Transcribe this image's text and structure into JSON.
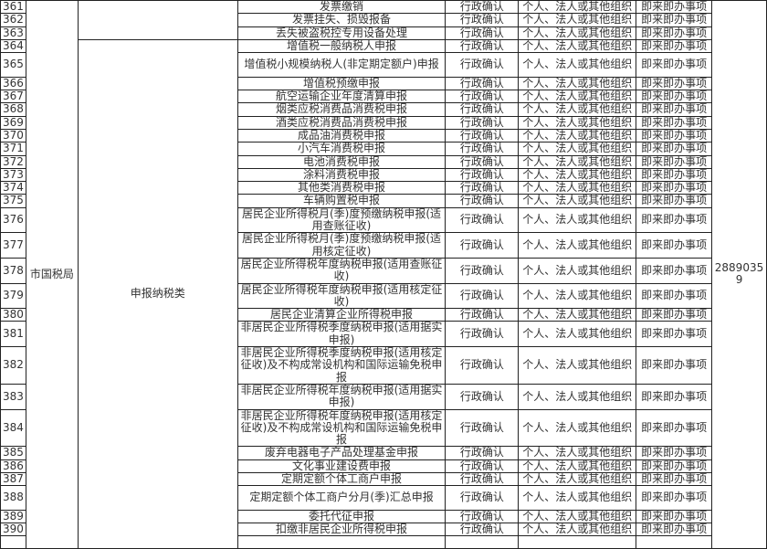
{
  "department": "市国税局",
  "phone": "28890359",
  "categories": [
    {
      "name": "",
      "first_index": 0,
      "count": 3
    },
    {
      "name": "申报纳税类",
      "first_index": 3,
      "count": 27
    }
  ],
  "rows": [
    {
      "no": "361",
      "item": "发票缴销",
      "type": "行政确认",
      "target": "个人、法人或其他组织",
      "timing": "即来即办事项",
      "lines": 1
    },
    {
      "no": "362",
      "item": "发票挂失、损毁报备",
      "type": "行政确认",
      "target": "个人、法人或其他组织",
      "timing": "即来即办事项",
      "lines": 1
    },
    {
      "no": "363",
      "item": "丢失被盗税控专用设备处理",
      "type": "行政确认",
      "target": "个人、法人或其他组织",
      "timing": "即来即办事项",
      "lines": 1
    },
    {
      "no": "364",
      "item": "增值税一般纳税人申报",
      "type": "行政确认",
      "target": "个人、法人或其他组织",
      "timing": "即来即办事项",
      "lines": 1
    },
    {
      "no": "365",
      "item": "增值税小规模纳税人(非定期定额户)申报",
      "type": "行政确认",
      "target": "个人、法人或其他组织",
      "timing": "即来即办事项",
      "lines": 2
    },
    {
      "no": "366",
      "item": "增值税预缴申报",
      "type": "行政确认",
      "target": "个人、法人或其他组织",
      "timing": "即来即办事项",
      "lines": 1
    },
    {
      "no": "367",
      "item": "航空运输企业年度清算申报",
      "type": "行政确认",
      "target": "个人、法人或其他组织",
      "timing": "即来即办事项",
      "lines": 1
    },
    {
      "no": "368",
      "item": "烟类应税消费品消费税申报",
      "type": "行政确认",
      "target": "个人、法人或其他组织",
      "timing": "即来即办事项",
      "lines": 1
    },
    {
      "no": "369",
      "item": "酒类应税消费品消费税申报",
      "type": "行政确认",
      "target": "个人、法人或其他组织",
      "timing": "即来即办事项",
      "lines": 1
    },
    {
      "no": "370",
      "item": "成品油消费税申报",
      "type": "行政确认",
      "target": "个人、法人或其他组织",
      "timing": "即来即办事项",
      "lines": 1
    },
    {
      "no": "371",
      "item": "小汽车消费税申报",
      "type": "行政确认",
      "target": "个人、法人或其他组织",
      "timing": "即来即办事项",
      "lines": 1
    },
    {
      "no": "372",
      "item": "电池消费税申报",
      "type": "行政确认",
      "target": "个人、法人或其他组织",
      "timing": "即来即办事项",
      "lines": 1
    },
    {
      "no": "373",
      "item": "涂料消费税申报",
      "type": "行政确认",
      "target": "个人、法人或其他组织",
      "timing": "即来即办事项",
      "lines": 1
    },
    {
      "no": "374",
      "item": "其他类消费税申报",
      "type": "行政确认",
      "target": "个人、法人或其他组织",
      "timing": "即来即办事项",
      "lines": 1
    },
    {
      "no": "375",
      "item": "车辆购置税申报",
      "type": "行政确认",
      "target": "个人、法人或其他组织",
      "timing": "即来即办事项",
      "lines": 1
    },
    {
      "no": "376",
      "item": "居民企业所得税月(季)度预缴纳税申报(适用查账征收)",
      "type": "行政确认",
      "target": "个人、法人或其他组织",
      "timing": "即来即办事项",
      "lines": 2
    },
    {
      "no": "377",
      "item": "居民企业所得税月(季)度预缴纳税申报(适用核定征收)",
      "type": "行政确认",
      "target": "个人、法人或其他组织",
      "timing": "即来即办事项",
      "lines": 2
    },
    {
      "no": "378",
      "item": "居民企业所得税年度纳税申报(适用查账征收)",
      "type": "行政确认",
      "target": "个人、法人或其他组织",
      "timing": "即来即办事项",
      "lines": 2
    },
    {
      "no": "379",
      "item": "居民企业所得税年度纳税申报(适用核定征收)",
      "type": "行政确认",
      "target": "个人、法人或其他组织",
      "timing": "即来即办事项",
      "lines": 2
    },
    {
      "no": "380",
      "item": "居民企业清算企业所得税申报",
      "type": "行政确认",
      "target": "个人、法人或其他组织",
      "timing": "即来即办事项",
      "lines": 1
    },
    {
      "no": "381",
      "item": "非居民企业所得税季度纳税申报(适用据实申报)",
      "type": "行政确认",
      "target": "个人、法人或其他组织",
      "timing": "即来即办事项",
      "lines": 2
    },
    {
      "no": "382",
      "item": "非居民企业所得税季度纳税申报(适用核定征收)及不构成常设机构和国际运输免税申报",
      "type": "行政确认",
      "target": "个人、法人或其他组织",
      "timing": "即来即办事项",
      "lines": 3
    },
    {
      "no": "383",
      "item": "非居民企业所得税年度纳税申报(适用据实申报)",
      "type": "行政确认",
      "target": "个人、法人或其他组织",
      "timing": "即来即办事项",
      "lines": 2
    },
    {
      "no": "384",
      "item": "非居民企业所得税年度纳税申报(适用核定征收)及不构成常设机构和国际运输免税申报",
      "type": "行政确认",
      "target": "个人、法人或其他组织",
      "timing": "即来即办事项",
      "lines": 3
    },
    {
      "no": "385",
      "item": "废弃电器电子产品处理基金申报",
      "type": "行政确认",
      "target": "个人、法人或其他组织",
      "timing": "即来即办事项",
      "lines": 1
    },
    {
      "no": "386",
      "item": "文化事业建设费申报",
      "type": "行政确认",
      "target": "个人、法人或其他组织",
      "timing": "即来即办事项",
      "lines": 1
    },
    {
      "no": "387",
      "item": "定期定额个体工商户申报",
      "type": "行政确认",
      "target": "个人、法人或其他组织",
      "timing": "即来即办事项",
      "lines": 1
    },
    {
      "no": "388",
      "item": "定期定额个体工商户分月(季)汇总申报",
      "type": "行政确认",
      "target": "个人、法人或其他组织",
      "timing": "即来即办事项",
      "lines": 2
    },
    {
      "no": "389",
      "item": "委托代征申报",
      "type": "行政确认",
      "target": "个人、法人或其他组织",
      "timing": "即来即办事项",
      "lines": 1
    },
    {
      "no": "390",
      "item": "扣缴非居民企业所得税申报",
      "type": "行政确认",
      "target": "个人、法人或其他组织",
      "timing": "即来即办事项",
      "lines": 1
    }
  ]
}
